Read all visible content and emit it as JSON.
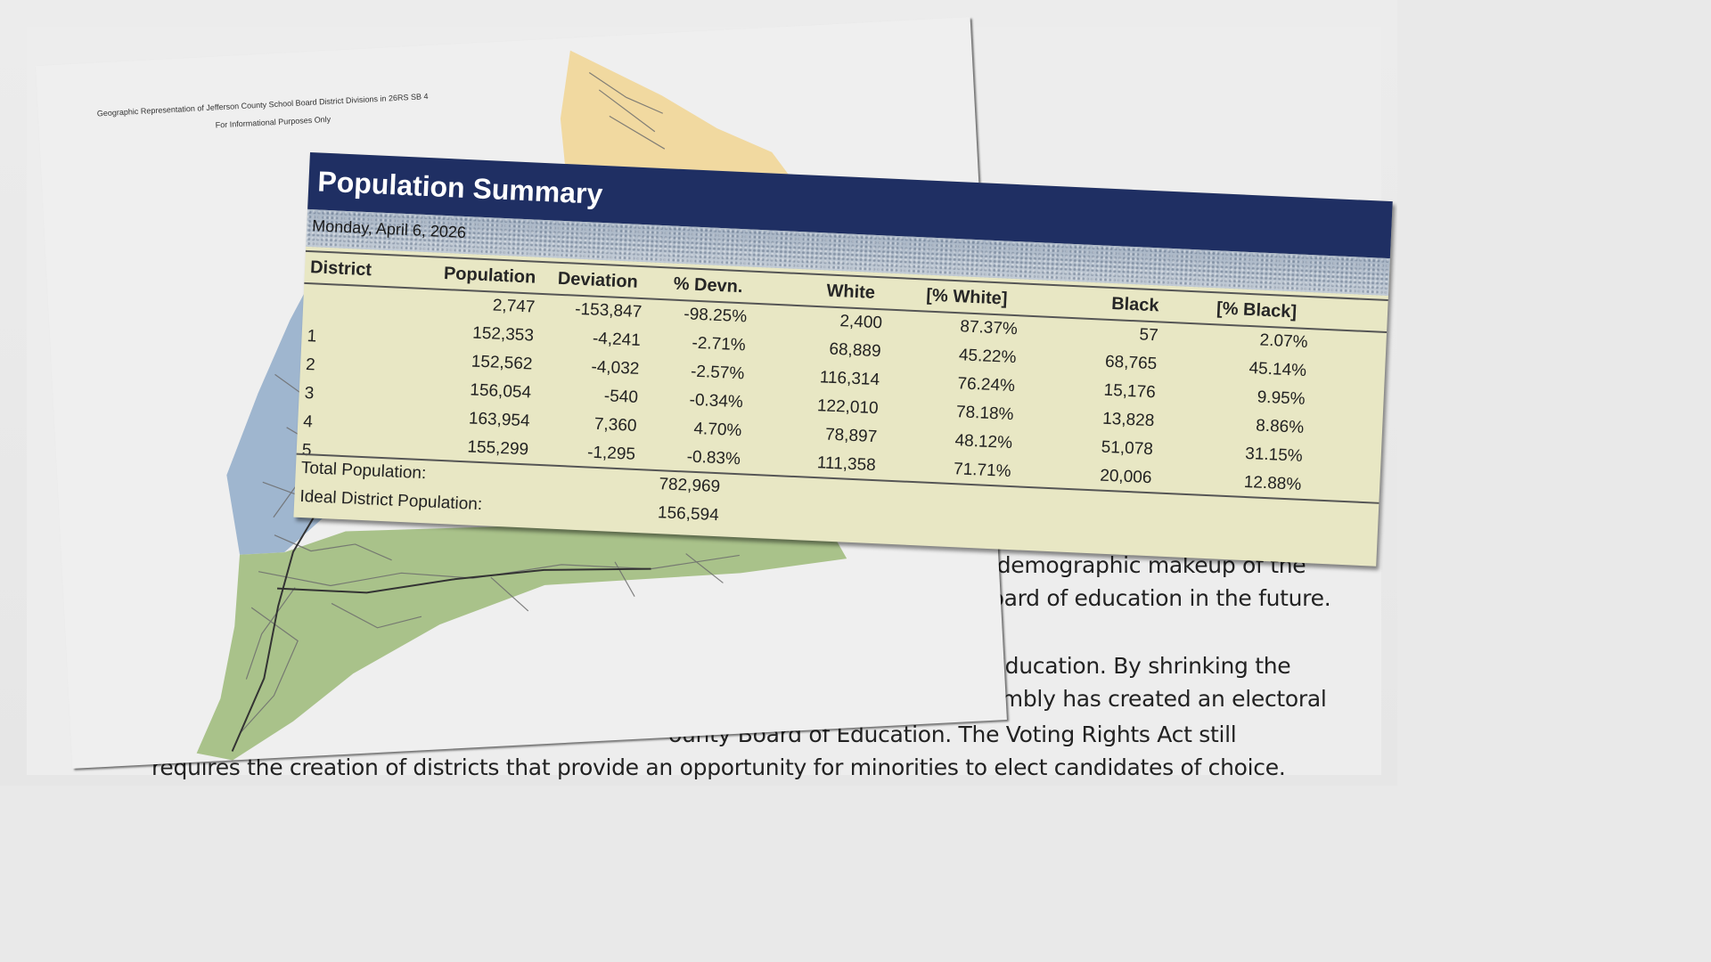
{
  "background_text": {
    "lines": [
      "e demographic makeup of the",
      "board of education in the future.",
      "f Education. By shrinking the",
      "sembly has created an electoral",
      "ounty Board of Education. The Voting Rights Act still",
      "requires the creation of districts that provide an opportunity for minorities to elect candidates of choice."
    ]
  },
  "map": {
    "title": "Geographic Representation of Jefferson County School Board District Divisions in 26RS SB 4",
    "subtitle": "For Informational Purposes Only",
    "colors": {
      "north_district": "#f1d9a0",
      "west_district": "#9fb6cf",
      "south_district": "#a9c28a",
      "roads": "#6d6d6d"
    }
  },
  "summary": {
    "title": "Population Summary",
    "date": "Monday, April 6, 2026",
    "columns": [
      "District",
      "Population",
      "Deviation",
      "% Devn.",
      "White",
      "[% White]",
      "Black",
      "[% Black]"
    ],
    "rows": [
      {
        "district": "",
        "population": "2,747",
        "deviation": "-153,847",
        "pct_devn": "-98.25%",
        "white": "2,400",
        "pct_white": "87.37%",
        "black": "57",
        "pct_black": "2.07%"
      },
      {
        "district": "1",
        "population": "152,353",
        "deviation": "-4,241",
        "pct_devn": "-2.71%",
        "white": "68,889",
        "pct_white": "45.22%",
        "black": "68,765",
        "pct_black": "45.14%"
      },
      {
        "district": "2",
        "population": "152,562",
        "deviation": "-4,032",
        "pct_devn": "-2.57%",
        "white": "116,314",
        "pct_white": "76.24%",
        "black": "15,176",
        "pct_black": "9.95%"
      },
      {
        "district": "3",
        "population": "156,054",
        "deviation": "-540",
        "pct_devn": "-0.34%",
        "white": "122,010",
        "pct_white": "78.18%",
        "black": "13,828",
        "pct_black": "8.86%"
      },
      {
        "district": "4",
        "population": "163,954",
        "deviation": "7,360",
        "pct_devn": "4.70%",
        "white": "78,897",
        "pct_white": "48.12%",
        "black": "51,078",
        "pct_black": "31.15%"
      },
      {
        "district": "5",
        "population": "155,299",
        "deviation": "-1,295",
        "pct_devn": "-0.83%",
        "white": "111,358",
        "pct_white": "71.71%",
        "black": "20,006",
        "pct_black": "12.88%"
      }
    ],
    "totals": {
      "total_label": "Total Population:",
      "total_value": "782,969",
      "ideal_label": "Ideal District Population:",
      "ideal_value": "156,594"
    },
    "colors": {
      "header_bg": "#1f2f63",
      "sheet_bg": "#e8e7c4"
    }
  }
}
